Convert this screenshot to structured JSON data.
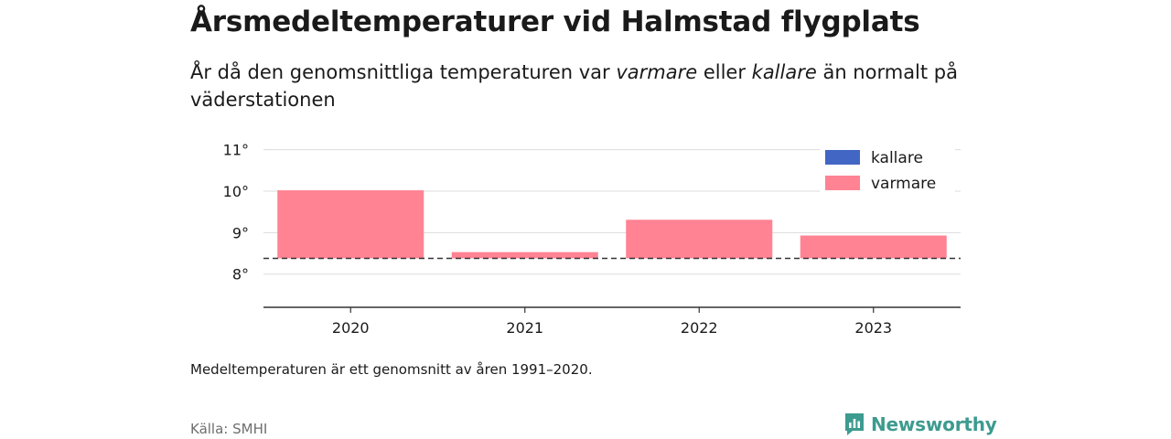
{
  "header": {
    "title": "Årsmedeltemperaturer vid Halmstad flygplats",
    "subtitle_parts": [
      "År då den genomsnittliga temperaturen var ",
      "varmare",
      " eller ",
      "kallare",
      " än normalt på väderstationen"
    ]
  },
  "chart_data": {
    "type": "bar",
    "categories": [
      "2020",
      "2021",
      "2022",
      "2023"
    ],
    "baseline": 8.38,
    "values": [
      10.02,
      8.53,
      9.31,
      8.93
    ],
    "ylim": [
      7.2,
      11.3
    ],
    "yticks": [
      8,
      9,
      10,
      11
    ],
    "ytick_labels": [
      "8°",
      "9°",
      "10°",
      "11°"
    ],
    "grid": true,
    "legend": {
      "placement": "top-right",
      "entries": [
        {
          "label": "kallare",
          "color": "#4266c4"
        },
        {
          "label": "varmare",
          "color": "#ff8393"
        }
      ]
    },
    "bar_color": "#ff8393"
  },
  "footer": {
    "note": "Medeltemperaturen är ett genomsnitt av åren 1991–2020.",
    "source": "Källa: SMHI",
    "brand": "Newsworthy",
    "brand_color": "#3d9b8f"
  }
}
